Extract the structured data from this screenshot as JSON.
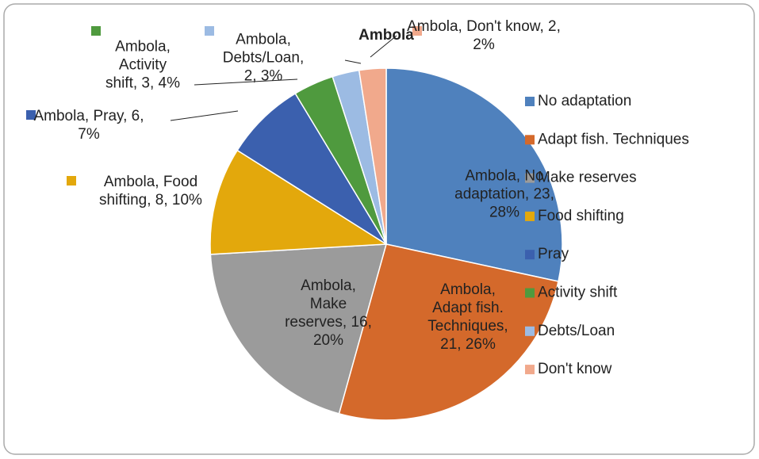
{
  "chart_data": {
    "type": "pie",
    "title": "Ambola",
    "categories": [
      "No adaptation",
      "Adapt fish. Techniques",
      "Make reserves",
      "Food shifting",
      "Pray",
      "Activity shift",
      "Debts/Loan",
      "Don't know"
    ],
    "values": [
      23,
      21,
      16,
      8,
      6,
      3,
      2,
      2
    ],
    "value_labels": [
      "Ambola, No adaptation, 23, 28%",
      "Ambola, Adapt fish. Techniques, 21, 26%",
      "Ambola, Make reserves, 16, 20%",
      "Ambola, Food shifting, 8, 10%",
      "Ambola, Pray, 6, 7%",
      "Ambola, Activity shift, 3, 4%",
      "Ambola, Debts/Loan, 2, 3%",
      "Ambola, Don't know, 2, 2%"
    ],
    "colors": [
      "#4f81bd",
      "#d4692b",
      "#9b9b9b",
      "#e3a80c",
      "#3b60ae",
      "#4f9a3e",
      "#9cbbe3",
      "#f1a98c"
    ],
    "legend": "right"
  }
}
